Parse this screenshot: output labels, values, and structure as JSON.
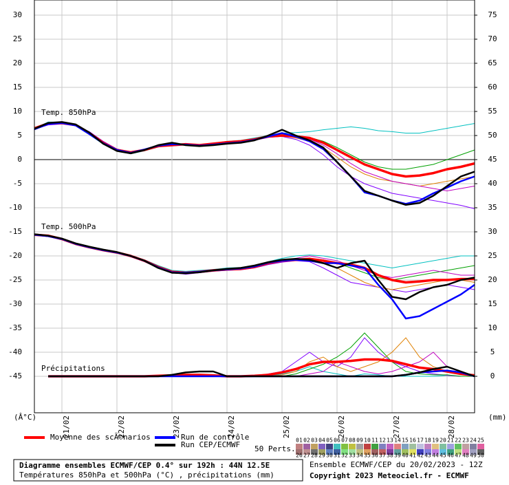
{
  "chart_data": {
    "type": "line",
    "title": "Diagramme ensembles ECMWF/CEP 0.4° sur 192h : 44N 12.5E",
    "subtitle": "Températures 850hPa et 500hPa (°C) , précipitations (mm)",
    "run_info": "Ensemble ECMWF/CEP du 20/02/2023 - 12Z",
    "copyright": "Copyright 2023 Meteociel.fr - ECMWF",
    "y_label": "(Â°C)",
    "y2_label": "(mm)",
    "panel_labels": [
      "Temp. 850hPa",
      "Temp. 500hPa",
      "Précipitations"
    ],
    "grid": true,
    "x": [
      0,
      6,
      12,
      18,
      24,
      30,
      36,
      42,
      48,
      54,
      60,
      66,
      72,
      78,
      84,
      90,
      96,
      102,
      108,
      114,
      120,
      126,
      132,
      138,
      144,
      150,
      156,
      162,
      168,
      174,
      180,
      186,
      192
    ],
    "xlim": [
      0,
      192
    ],
    "xticks": [
      {
        "value": 12,
        "label": "21/02"
      },
      {
        "value": 36,
        "label": "22/02"
      },
      {
        "value": 60,
        "label": "23/02"
      },
      {
        "value": 84,
        "label": "24/02"
      },
      {
        "value": 108,
        "label": "25/02"
      },
      {
        "value": 132,
        "label": "26/02"
      },
      {
        "value": 156,
        "label": "27/02"
      },
      {
        "value": 180,
        "label": "28/02"
      }
    ],
    "ylim": [
      -52.57,
      33.14
    ],
    "yticks": [
      30,
      25,
      20,
      15,
      10,
      5,
      0,
      -5,
      -10,
      -15,
      -20,
      -25,
      -30,
      -35,
      -40,
      -45
    ],
    "y2lim": [
      -7.57,
      78.14
    ],
    "y2ticks": [
      75,
      70,
      65,
      60,
      55,
      50,
      45,
      40,
      35,
      30,
      25,
      20,
      15,
      10,
      5,
      0
    ],
    "series": [
      {
        "name": "Moyenne des scÃ©narios",
        "color": "#ff0000",
        "width": 3.5,
        "values_850": [
          6.5,
          7.5,
          7.6,
          7.2,
          5.5,
          3.5,
          2.0,
          1.5,
          2.0,
          2.8,
          3.0,
          3.2,
          3.0,
          3.3,
          3.6,
          3.8,
          4.2,
          4.8,
          5.0,
          4.8,
          4.5,
          3.5,
          2.0,
          0.5,
          -1.0,
          -2.0,
          -3.0,
          -3.5,
          -3.3,
          -2.8,
          -2.0,
          -1.5,
          -0.8
        ],
        "values_500": [
          -15.6,
          -15.8,
          -16.5,
          -17.5,
          -18.2,
          -18.8,
          -19.3,
          -20.0,
          -21.0,
          -22.3,
          -23.3,
          -23.5,
          -23.3,
          -23.0,
          -22.8,
          -22.7,
          -22.3,
          -21.5,
          -21.0,
          -20.8,
          -20.6,
          -21.0,
          -21.5,
          -21.8,
          -22.5,
          -24.0,
          -25.0,
          -25.5,
          -25.3,
          -25.0,
          -25.0,
          -24.8,
          -24.8
        ],
        "precip": [
          null,
          0,
          0,
          0,
          0,
          0,
          0,
          0,
          0,
          0.1,
          0.2,
          0.3,
          0.3,
          0.2,
          0,
          0,
          0.1,
          0.3,
          0.8,
          1.5,
          2.5,
          3.0,
          3.0,
          3.2,
          3.5,
          3.5,
          3.2,
          2.5,
          1.8,
          1.5,
          1.0,
          0.5,
          0.2
        ]
      },
      {
        "name": "Run de contrôle",
        "color": "#0000ff",
        "width": 2.5,
        "values_850": [
          6.3,
          7.4,
          7.6,
          7.1,
          5.3,
          3.4,
          2.0,
          1.4,
          2.1,
          2.9,
          3.2,
          3.1,
          2.9,
          3.1,
          3.4,
          3.6,
          4.1,
          4.8,
          5.5,
          4.8,
          3.8,
          2.2,
          -0.5,
          -3.5,
          -6.8,
          -7.5,
          -8.5,
          -9.2,
          -8.5,
          -7.0,
          -5.8,
          -4.5,
          -3.5
        ],
        "values_500": [
          -15.6,
          -15.9,
          -16.5,
          -17.5,
          -18.2,
          -18.8,
          -19.3,
          -20.0,
          -21.0,
          -22.4,
          -23.4,
          -23.5,
          -23.3,
          -23.0,
          -22.8,
          -22.6,
          -22.2,
          -21.4,
          -21.0,
          -20.8,
          -21.0,
          -21.5,
          -21.5,
          -22.0,
          -22.5,
          -26.0,
          -29.0,
          -33.0,
          -32.5,
          -31.0,
          -29.5,
          -28.0,
          -26.0
        ],
        "precip": [
          null,
          0,
          0,
          0,
          0,
          0,
          0,
          0,
          0,
          0,
          0,
          0,
          0,
          0,
          0,
          0,
          0,
          0,
          0,
          0,
          0,
          0,
          0,
          0,
          0,
          0,
          0,
          0.3,
          0.8,
          1.0,
          1.2,
          0.8,
          0
        ]
      },
      {
        "name": "Run CEP/ECMWF",
        "color": "#000000",
        "width": 2.5,
        "values_850": [
          6.4,
          7.6,
          7.8,
          7.3,
          5.6,
          3.3,
          1.8,
          1.3,
          2.0,
          3.0,
          3.5,
          3.0,
          2.8,
          3.0,
          3.3,
          3.5,
          4.0,
          5.0,
          6.2,
          5.0,
          4.0,
          2.5,
          -0.5,
          -3.5,
          -6.5,
          -7.5,
          -8.5,
          -9.4,
          -9.0,
          -7.5,
          -5.5,
          -3.5,
          -2.5
        ],
        "values_500": [
          -15.5,
          -15.8,
          -16.4,
          -17.4,
          -18.1,
          -18.7,
          -19.2,
          -20.0,
          -21.0,
          -22.5,
          -23.5,
          -23.6,
          -23.4,
          -23.0,
          -22.7,
          -22.5,
          -22.0,
          -21.3,
          -20.8,
          -20.6,
          -20.8,
          -21.5,
          -22.5,
          -21.5,
          -21.0,
          -25.0,
          -28.5,
          -29.0,
          -27.5,
          -26.5,
          -26.0,
          -25.0,
          -24.5
        ],
        "precip": [
          null,
          0,
          0,
          0,
          0,
          0,
          0,
          0,
          0,
          0,
          0.3,
          0.8,
          1.0,
          1.0,
          0,
          0,
          0,
          0,
          0,
          0,
          0,
          0,
          0,
          0,
          0,
          0,
          0,
          0.3,
          0.8,
          1.5,
          2.0,
          1.0,
          0
        ]
      }
    ],
    "members": [
      {
        "color": "#00c0c0",
        "values_850": [
          6.5,
          7.8,
          7.8,
          7.0,
          5.2,
          3.2,
          1.8,
          1.2,
          1.8,
          2.6,
          3.0,
          3.2,
          3.1,
          3.4,
          3.8,
          4.0,
          4.5,
          5.0,
          5.5,
          5.6,
          5.8,
          6.2,
          6.5,
          6.8,
          6.5,
          6.0,
          5.8,
          5.5,
          5.5,
          6.0,
          6.5,
          7.0,
          7.5
        ],
        "values_500": [
          -15.5,
          -15.8,
          -16.4,
          -17.3,
          -18.0,
          -18.6,
          -19.2,
          -19.9,
          -20.8,
          -22.0,
          -23.0,
          -23.2,
          -23.0,
          -22.8,
          -22.5,
          -22.4,
          -22.0,
          -21.2,
          -20.5,
          -20.0,
          -19.8,
          -20.0,
          -20.5,
          -21.0,
          -21.5,
          -22.0,
          -22.5,
          -22.0,
          -21.5,
          -21.0,
          -20.5,
          -20.0,
          -20.0
        ],
        "precip": [
          null,
          0,
          0,
          0,
          0,
          0,
          0,
          0,
          0,
          0.2,
          0,
          0,
          0,
          0.3,
          0,
          0,
          0,
          0,
          0.5,
          1,
          2,
          1,
          0.5,
          0,
          0.5,
          0.3,
          0,
          0,
          0,
          0,
          0.2,
          0,
          0
        ]
      },
      {
        "color": "#8000ff",
        "values_850": [
          6.3,
          7.2,
          7.4,
          7.0,
          5.8,
          3.8,
          2.2,
          1.6,
          2.1,
          2.9,
          3.1,
          3.3,
          3.0,
          3.2,
          3.5,
          3.6,
          4.0,
          4.6,
          4.8,
          4.2,
          3.0,
          1.0,
          -1.5,
          -3.5,
          -5.0,
          -6.0,
          -7.0,
          -7.5,
          -8.0,
          -8.5,
          -9.0,
          -9.5,
          -10.2
        ],
        "values_500": [
          -15.7,
          -16.0,
          -16.6,
          -17.6,
          -18.3,
          -18.9,
          -19.4,
          -20.2,
          -21.2,
          -22.5,
          -23.5,
          -23.8,
          -23.5,
          -23.2,
          -23.0,
          -22.9,
          -22.5,
          -21.8,
          -21.3,
          -21.0,
          -21.2,
          -22.5,
          -24.0,
          -25.5,
          -26.0,
          -26.5,
          -27.0,
          -27.5,
          -27.0,
          -26.5,
          -26.0,
          -26.5,
          -27.0
        ],
        "precip": [
          null,
          0,
          0,
          0,
          0,
          0,
          0,
          0,
          0,
          0,
          0,
          0,
          0,
          0,
          0,
          0,
          0,
          0.5,
          1,
          3,
          5,
          3,
          2,
          4,
          8,
          5,
          3,
          2,
          1,
          0.5,
          0.2,
          0,
          0
        ]
      },
      {
        "color": "#00a000",
        "values_850": [
          6.6,
          7.6,
          7.7,
          7.3,
          5.6,
          3.6,
          2.0,
          1.5,
          2.0,
          2.7,
          2.9,
          3.1,
          3.0,
          3.3,
          3.6,
          3.8,
          4.3,
          4.9,
          5.2,
          5.0,
          4.6,
          3.8,
          2.5,
          1.0,
          -0.5,
          -1.5,
          -2.0,
          -2.0,
          -1.5,
          -1.0,
          0.0,
          1.0,
          2.0
        ],
        "values_500": [
          -15.6,
          -15.9,
          -16.5,
          -17.5,
          -18.2,
          -18.8,
          -19.3,
          -20.0,
          -21.0,
          -22.3,
          -23.3,
          -23.5,
          -23.3,
          -23.0,
          -22.8,
          -22.7,
          -22.3,
          -21.5,
          -21.0,
          -20.7,
          -20.5,
          -20.8,
          -21.5,
          -22.5,
          -23.5,
          -24.5,
          -25.0,
          -24.5,
          -24.0,
          -23.5,
          -23.0,
          -22.5,
          -22.0
        ],
        "precip": [
          null,
          0,
          0,
          0,
          0,
          0,
          0,
          0,
          0,
          0,
          0,
          0,
          0,
          0,
          0,
          0,
          0,
          0,
          0,
          0.5,
          1.5,
          2.5,
          4,
          6,
          9,
          6,
          3,
          1,
          0.5,
          0.3,
          0.3,
          0,
          0
        ]
      },
      {
        "color": "#e08000",
        "values_850": [
          6.4,
          7.4,
          7.5,
          7.1,
          5.4,
          3.4,
          1.9,
          1.3,
          1.9,
          2.8,
          3.0,
          3.2,
          3.0,
          3.3,
          3.7,
          3.9,
          4.3,
          4.7,
          5.0,
          4.5,
          3.8,
          2.5,
          0.5,
          -1.5,
          -3.0,
          -4.0,
          -4.5,
          -5.0,
          -5.5,
          -5.0,
          -4.5,
          -4.0,
          -3.5
        ],
        "values_500": [
          -15.6,
          -15.9,
          -16.5,
          -17.5,
          -18.2,
          -18.8,
          -19.3,
          -20.0,
          -21.0,
          -22.3,
          -23.3,
          -23.5,
          -23.3,
          -23.0,
          -22.8,
          -22.7,
          -22.3,
          -21.5,
          -21.0,
          -20.8,
          -21.0,
          -21.5,
          -22.5,
          -24.0,
          -25.5,
          -26.5,
          -27.0,
          -26.5,
          -26.0,
          -25.5,
          -25.0,
          -25.0,
          -25.5
        ],
        "precip": [
          null,
          0,
          0,
          0,
          0,
          0,
          0,
          0,
          0,
          0,
          0,
          0,
          0,
          0,
          0,
          0,
          0,
          0,
          0.3,
          1,
          3,
          4,
          2,
          1,
          2,
          3,
          5,
          8,
          4,
          2,
          1,
          0.5,
          0
        ]
      },
      {
        "color": "#c000c0",
        "values_850": [
          6.5,
          7.5,
          7.6,
          7.2,
          5.5,
          3.5,
          2.0,
          1.4,
          2.0,
          2.8,
          3.0,
          3.2,
          3.0,
          3.3,
          3.6,
          3.8,
          4.2,
          4.8,
          5.1,
          4.9,
          4.3,
          3.0,
          1.2,
          -0.8,
          -2.5,
          -3.5,
          -4.5,
          -5.0,
          -5.5,
          -6.0,
          -6.5,
          -6.0,
          -5.5
        ],
        "values_500": [
          -15.6,
          -15.9,
          -16.5,
          -17.5,
          -18.2,
          -18.8,
          -19.3,
          -20.0,
          -21.0,
          -22.3,
          -23.3,
          -23.5,
          -23.3,
          -23.0,
          -22.8,
          -22.7,
          -22.3,
          -21.5,
          -21.0,
          -20.5,
          -20.0,
          -20.5,
          -21.0,
          -22.0,
          -23.0,
          -24.0,
          -24.5,
          -24.0,
          -23.5,
          -23.0,
          -23.5,
          -24.0,
          -24.0
        ],
        "precip": [
          null,
          0,
          0,
          0,
          0,
          0,
          0,
          0,
          0,
          0,
          0,
          0,
          0,
          0,
          0,
          0,
          0,
          0,
          0,
          0,
          0.5,
          1,
          3,
          2,
          1,
          0.5,
          1,
          2,
          3,
          5,
          2,
          1,
          0
        ]
      }
    ],
    "perturbations": {
      "name": "50 Perts.",
      "labels": [
        "01",
        "02",
        "03",
        "04",
        "05",
        "06",
        "07",
        "08",
        "09",
        "10",
        "11",
        "12",
        "13",
        "14",
        "15",
        "16",
        "17",
        "18",
        "19",
        "20",
        "21",
        "22",
        "23",
        "24",
        "25",
        "26",
        "27",
        "28",
        "29",
        "30",
        "31",
        "32",
        "33",
        "34",
        "35",
        "36",
        "37",
        "38",
        "39",
        "40",
        "41",
        "42",
        "43",
        "44",
        "45",
        "46",
        "47",
        "48",
        "49",
        "50"
      ],
      "colors": [
        "#c08080",
        "#a060a0",
        "#c0a060",
        "#8060c0",
        "#404080",
        "#40c0c0",
        "#80c040",
        "#c0c040",
        "#a0a0a0",
        "#c04040",
        "#40a040",
        "#8080c0",
        "#c060c0",
        "#e08080",
        "#80a0c0",
        "#a0c0a0",
        "#c0c0e0",
        "#c080c0",
        "#e0c080",
        "#80c0a0",
        "#a0a0e0",
        "#60c060",
        "#c0a0a0",
        "#8080a0",
        "#e060a0",
        "#a07070",
        "#c09090",
        "#707070",
        "#a0a060",
        "#6080c0",
        "#4060a0",
        "#80e080",
        "#a0e0a0",
        "#c0c080",
        "#e0a060",
        "#a06060",
        "#c06060",
        "#8040a0",
        "#60a0a0",
        "#a0c060",
        "#e0e060",
        "#4040c0",
        "#8080e0",
        "#c080e0",
        "#60c0e0",
        "#40a080",
        "#c0e080",
        "#e080c0",
        "#a0a0c0",
        "#606060"
      ]
    }
  }
}
